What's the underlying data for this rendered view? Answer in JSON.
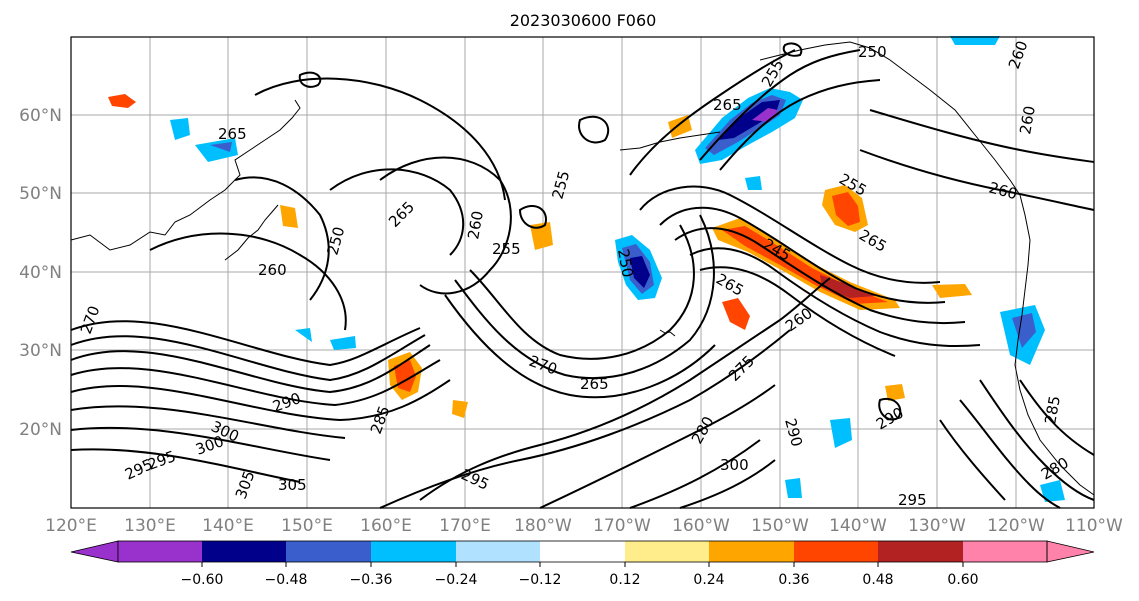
{
  "title": "2023030600 F060",
  "lat_labels": [
    "60°N",
    "50°N",
    "40°N",
    "30°N",
    "20°N"
  ],
  "lon_labels": [
    "120°E",
    "130°E",
    "140°E",
    "150°E",
    "160°E",
    "170°E",
    "180°W",
    "170°W",
    "160°W",
    "150°W",
    "140°W",
    "130°W",
    "120°W",
    "110°W"
  ],
  "colorbar": {
    "ticks": [
      "−0.60",
      "−0.48",
      "−0.36",
      "−0.24",
      "−0.12",
      "0.12",
      "0.24",
      "0.36",
      "0.48",
      "0.60"
    ],
    "colors": [
      "#9932cc",
      "#00008b",
      "#3a5fcd",
      "#00bfff",
      "#b0e2ff",
      "#ffffff",
      "#ffec8b",
      "#ffa500",
      "#ff4500",
      "#b22222",
      "#ff82ab"
    ]
  },
  "contour_labels": [
    "265",
    "250",
    "260",
    "255",
    "265",
    "260",
    "255",
    "265",
    "255",
    "250",
    "260",
    "265",
    "255",
    "245",
    "265",
    "260",
    "270",
    "265",
    "275",
    "250",
    "260",
    "260",
    "290",
    "290",
    "300",
    "295",
    "295",
    "305",
    "300",
    "285",
    "305",
    "295",
    "280",
    "285",
    "300",
    "290",
    "295",
    "270",
    "280"
  ]
}
